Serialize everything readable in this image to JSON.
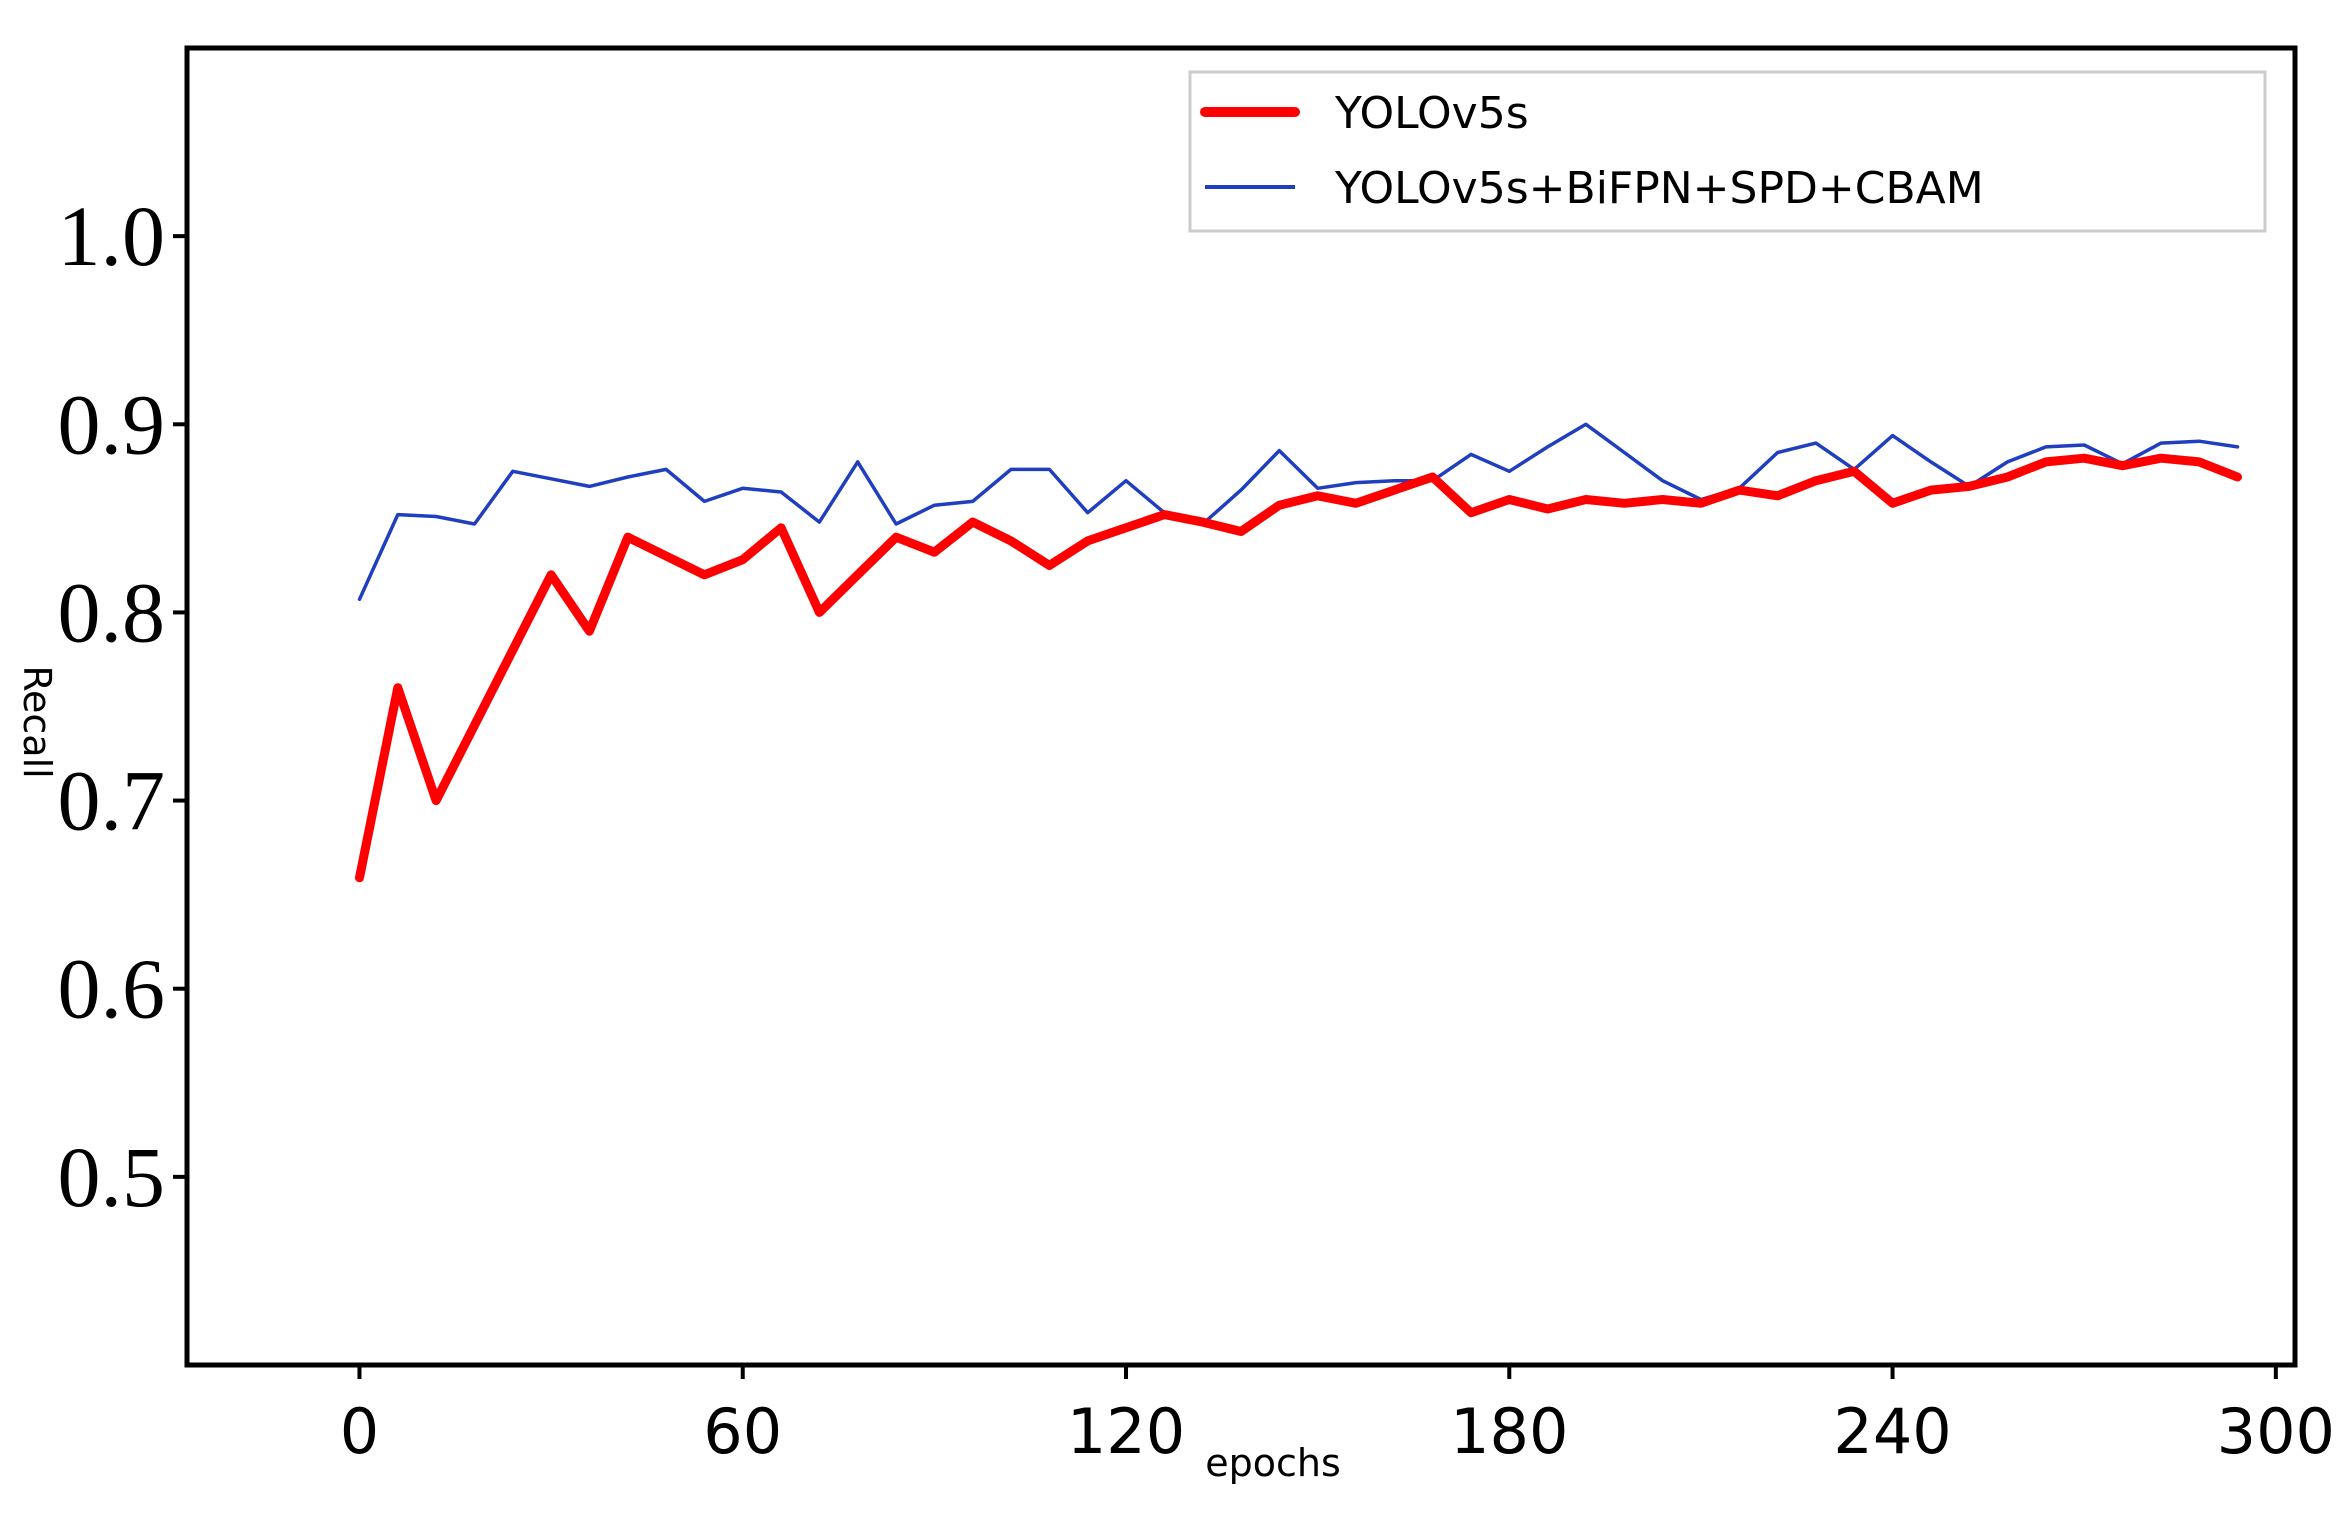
{
  "chart_data": {
    "type": "line",
    "xlabel": "epochs",
    "ylabel": "Recall",
    "xlim": [
      -27,
      303
    ],
    "ylim": [
      0.4,
      1.1
    ],
    "xticks": [
      0,
      60,
      120,
      180,
      240,
      300
    ],
    "xtick_labels": [
      "0",
      "60",
      "120",
      "180",
      "240",
      "300"
    ],
    "yticks": [
      0.5,
      0.6,
      0.7,
      0.8,
      0.9,
      1.0
    ],
    "ytick_labels": [
      "0.5",
      "0.6",
      "0.7",
      "0.8",
      "0.9",
      "1.0"
    ],
    "grid": false,
    "legend_position": "top-right",
    "series": [
      {
        "name": "YOLOv5s",
        "color": "#ff0000",
        "x": [
          0,
          6,
          12,
          18,
          24,
          30,
          36,
          42,
          48,
          54,
          60,
          66,
          72,
          78,
          84,
          90,
          96,
          102,
          108,
          114,
          120,
          126,
          132,
          138,
          144,
          150,
          156,
          162,
          168,
          174,
          180,
          186,
          192,
          198,
          204,
          210,
          216,
          222,
          228,
          234,
          240,
          246,
          252,
          258,
          264,
          270,
          276,
          282,
          288,
          294
        ],
        "values": [
          0.659,
          0.76,
          0.7,
          0.74,
          0.78,
          0.82,
          0.79,
          0.84,
          0.83,
          0.82,
          0.828,
          0.845,
          0.8,
          0.82,
          0.84,
          0.832,
          0.848,
          0.838,
          0.825,
          0.838,
          0.845,
          0.852,
          0.848,
          0.843,
          0.857,
          0.862,
          0.858,
          0.865,
          0.872,
          0.853,
          0.86,
          0.855,
          0.86,
          0.858,
          0.86,
          0.858,
          0.865,
          0.862,
          0.87,
          0.875,
          0.858,
          0.865,
          0.867,
          0.872,
          0.88,
          0.882,
          0.878,
          0.882,
          0.88,
          0.872
        ]
      },
      {
        "name": "YOLOv5s+BiFPN+SPD+CBAM",
        "color": "#1f3fbf",
        "x": [
          0,
          6,
          12,
          18,
          24,
          30,
          36,
          42,
          48,
          54,
          60,
          66,
          72,
          78,
          84,
          90,
          96,
          102,
          108,
          114,
          120,
          126,
          132,
          138,
          144,
          150,
          156,
          162,
          168,
          174,
          180,
          186,
          192,
          198,
          204,
          210,
          216,
          222,
          228,
          234,
          240,
          246,
          252,
          258,
          264,
          270,
          276,
          282,
          288,
          294
        ],
        "values": [
          0.807,
          0.852,
          0.851,
          0.847,
          0.875,
          0.871,
          0.867,
          0.872,
          0.876,
          0.859,
          0.866,
          0.864,
          0.848,
          0.88,
          0.847,
          0.857,
          0.859,
          0.876,
          0.876,
          0.853,
          0.87,
          0.853,
          0.847,
          0.865,
          0.886,
          0.866,
          0.869,
          0.87,
          0.87,
          0.884,
          0.875,
          0.888,
          0.9,
          0.885,
          0.87,
          0.86,
          0.866,
          0.885,
          0.89,
          0.876,
          0.894,
          0.88,
          0.867,
          0.88,
          0.888,
          0.889,
          0.879,
          0.89,
          0.891,
          0.888
        ]
      }
    ]
  }
}
